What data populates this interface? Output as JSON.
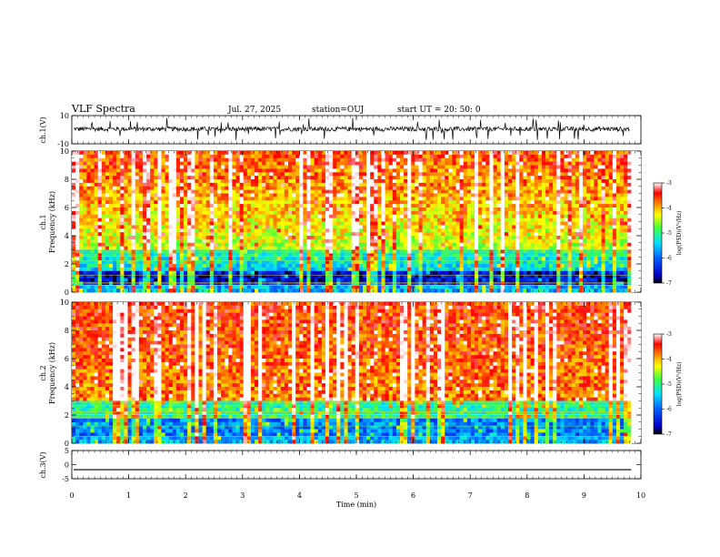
{
  "header": {
    "title": "VLF Spectra",
    "date": "Jul. 27, 2025",
    "station": "station=OUJ",
    "start": "start UT =  20: 50: 0"
  },
  "chart_data": [
    {
      "type": "line",
      "panel": "ch1-waveform",
      "ylabel": "ch.1(V)",
      "ylim": [
        -10,
        10
      ],
      "yticks": [
        "10",
        "-10"
      ],
      "baseline": 0,
      "series": [
        {
          "values_description": "noisy waveform around 0 V with spikes"
        }
      ]
    },
    {
      "type": "heatmap",
      "panel": "ch1-spectrogram",
      "ylabel": "ch.1 Frequency (kHz)",
      "ylim": [
        0,
        10
      ],
      "yticks": [
        "0",
        "2",
        "4",
        "6",
        "8",
        "10"
      ],
      "colorbar": {
        "label": "log(PSD)(V²/Hz)",
        "range": [
          -7,
          -3
        ],
        "ticks": [
          "-3",
          "-4",
          "-5",
          "-6",
          "-7"
        ]
      }
    },
    {
      "type": "heatmap",
      "panel": "ch2-spectrogram",
      "ylabel": "ch.2 Frequency (kHz)",
      "ylim": [
        0,
        10
      ],
      "yticks": [
        "0",
        "2",
        "4",
        "6",
        "8",
        "10"
      ],
      "colorbar": {
        "label": "log(PSD)(V²/Hz)",
        "range": [
          -7,
          -3
        ],
        "ticks": [
          "-3",
          "-4",
          "-5",
          "-6",
          "-7"
        ]
      }
    },
    {
      "type": "line",
      "panel": "ch3-waveform",
      "ylabel": "ch.3(V)",
      "ylim": [
        -5,
        5
      ],
      "yticks": [
        "5",
        "0",
        "-5"
      ],
      "series": [
        {
          "constant": -1.8
        }
      ]
    }
  ],
  "xaxis": {
    "label": "Time (min)",
    "range": [
      0,
      10
    ],
    "ticks": [
      "0",
      "1",
      "2",
      "3",
      "4",
      "5",
      "6",
      "7",
      "8",
      "9",
      "10"
    ],
    "data_end": 9.83
  },
  "labels": {
    "ch1_v": "ch.1(V)",
    "ch1_freq_a": "ch.1",
    "ch1_freq_b": "Frequency (kHz)",
    "ch2_freq_a": "ch.2",
    "ch2_freq_b": "Frequency (kHz)",
    "ch3_v": "ch.3(V)",
    "cb_label": "log(PSD)(V²/Hz)"
  }
}
